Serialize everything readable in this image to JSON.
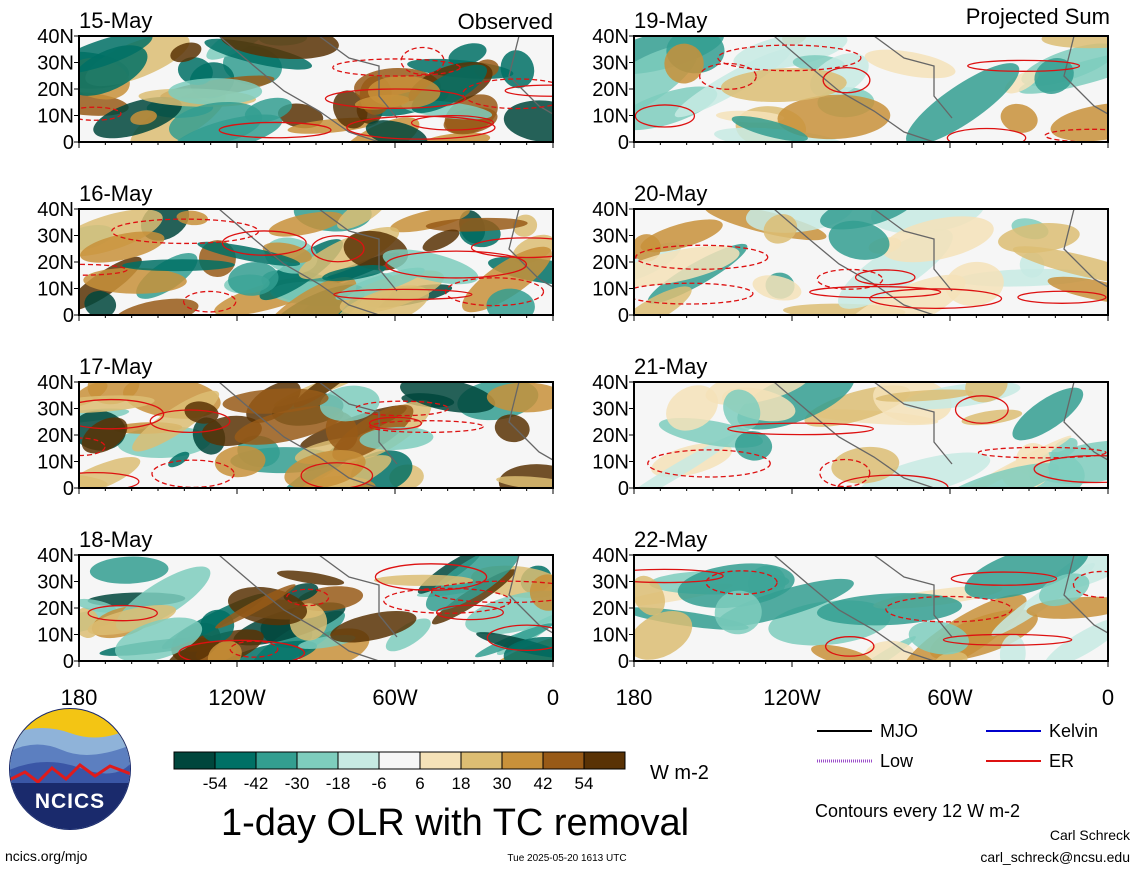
{
  "header": {
    "left_tag": "Observed",
    "right_tag": "Projected Sum"
  },
  "panels": [
    {
      "date": "15-May",
      "column": "observed",
      "row": 0
    },
    {
      "date": "16-May",
      "column": "observed",
      "row": 1
    },
    {
      "date": "17-May",
      "column": "observed",
      "row": 2
    },
    {
      "date": "18-May",
      "column": "observed",
      "row": 3
    },
    {
      "date": "19-May",
      "column": "projected",
      "row": 0
    },
    {
      "date": "20-May",
      "column": "projected",
      "row": 1
    },
    {
      "date": "21-May",
      "column": "projected",
      "row": 2
    },
    {
      "date": "22-May",
      "column": "projected",
      "row": 3
    }
  ],
  "lat_labels": [
    "40N",
    "30N",
    "20N",
    "10N",
    "0"
  ],
  "lon_labels": [
    "180",
    "120W",
    "60W",
    "0"
  ],
  "colorbar": {
    "unit": "W m-2",
    "ticks": [
      "-54",
      "-42",
      "-30",
      "-18",
      "-6",
      "6",
      "18",
      "30",
      "42",
      "54"
    ],
    "colors": [
      "#00463c",
      "#007065",
      "#339e90",
      "#7ecdbd",
      "#c7eae3",
      "#f6f6f6",
      "#f5e2b8",
      "#dcbd73",
      "#c8913a",
      "#985a17",
      "#593205"
    ]
  },
  "legend": {
    "items": [
      {
        "label": "MJO",
        "color": "#000000",
        "style": "solid"
      },
      {
        "label": "Kelvin",
        "color": "#0000cc",
        "style": "solid"
      },
      {
        "label": "Low",
        "color": "#9b4dca",
        "style": "dotted"
      },
      {
        "label": "ER",
        "color": "#dd1111",
        "style": "solid"
      }
    ],
    "contours_note": "Contours every 12 W m-2"
  },
  "title": "1-day OLR with TC removal",
  "footer": {
    "left": "ncics.org/mjo",
    "center": "Tue 2025-05-20 1613 UTC",
    "author": "Carl Schreck",
    "email": "carl_schreck@ncsu.edu"
  },
  "logo": {
    "text": "NCICS"
  }
}
